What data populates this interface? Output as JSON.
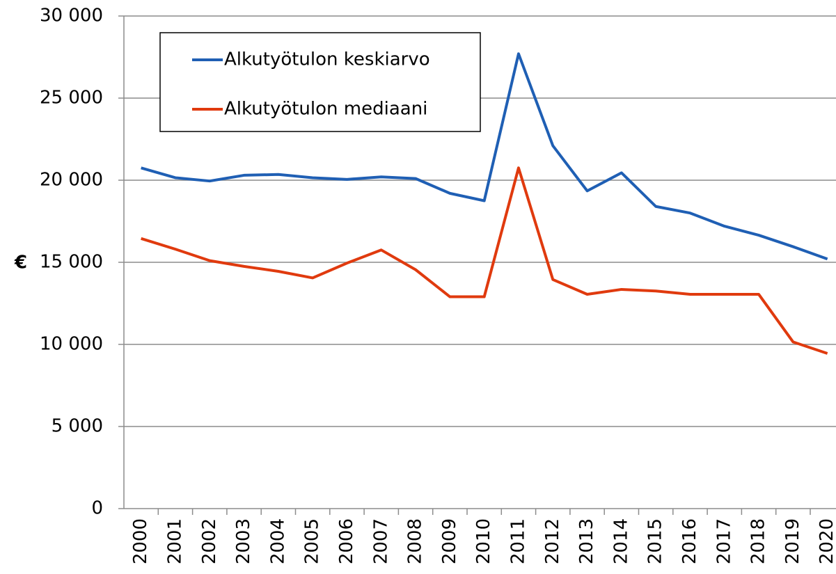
{
  "chart_data": {
    "type": "line",
    "y_label": "€",
    "categories": [
      "2000",
      "2001",
      "2002",
      "2003",
      "2004",
      "2005",
      "2006",
      "2007",
      "2008",
      "2009",
      "2010",
      "2011",
      "2012",
      "2013",
      "2014",
      "2015",
      "2016",
      "2017",
      "2018",
      "2019",
      "2020"
    ],
    "series": [
      {
        "name": "Alkutyötulon keskiarvo",
        "color": "#1f5fb4",
        "values": [
          20750,
          20150,
          19950,
          20300,
          20350,
          20150,
          20050,
          20200,
          20100,
          19200,
          18750,
          27700,
          22100,
          19350,
          20450,
          18400,
          18000,
          17200,
          16650,
          15950,
          15200
        ]
      },
      {
        "name": "Alkutyötulon mediaani",
        "color": "#e03a0e",
        "values": [
          16450,
          15800,
          15100,
          14750,
          14450,
          14050,
          14950,
          15750,
          14550,
          12900,
          12900,
          20750,
          13950,
          13050,
          13350,
          13250,
          13050,
          13050,
          13050,
          10150,
          9450
        ]
      }
    ],
    "ylim": [
      0,
      30000
    ],
    "yticks": [
      {
        "value": 0,
        "label": "0"
      },
      {
        "value": 5000,
        "label": "5 000"
      },
      {
        "value": 10000,
        "label": "10 000"
      },
      {
        "value": 15000,
        "label": "15 000"
      },
      {
        "value": 20000,
        "label": "20 000"
      },
      {
        "value": 25000,
        "label": "25 000"
      },
      {
        "value": 30000,
        "label": "30 000"
      }
    ],
    "grid": true,
    "legend": "upper-left"
  }
}
